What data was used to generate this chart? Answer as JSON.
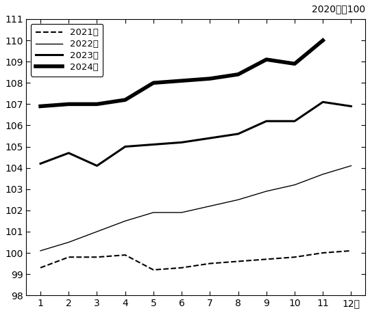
{
  "title_annotation": "2020年＝100",
  "ylim": [
    98,
    111
  ],
  "yticks": [
    98,
    99,
    100,
    101,
    102,
    103,
    104,
    105,
    106,
    107,
    108,
    109,
    110,
    111
  ],
  "series": {
    "2021年": {
      "data": [
        99.3,
        99.8,
        99.8,
        99.9,
        99.2,
        99.3,
        99.5,
        99.6,
        99.7,
        99.8,
        100.0,
        100.1
      ],
      "linestyle": "dashed",
      "linewidth": 1.5,
      "color": "#000000",
      "dashes": [
        4,
        3
      ]
    },
    "2022年": {
      "data": [
        100.1,
        100.5,
        101.0,
        101.5,
        101.9,
        101.9,
        102.2,
        102.5,
        102.9,
        103.2,
        103.7,
        104.1
      ],
      "linestyle": "solid",
      "linewidth": 1.0,
      "color": "#000000"
    },
    "2023年": {
      "data": [
        104.2,
        104.7,
        104.1,
        105.0,
        105.1,
        105.2,
        105.4,
        105.6,
        106.2,
        106.2,
        107.1,
        106.9
      ],
      "linestyle": "solid",
      "linewidth": 2.2,
      "color": "#000000"
    },
    "2024年": {
      "data": [
        106.9,
        107.0,
        107.0,
        107.2,
        108.0,
        108.1,
        108.2,
        108.4,
        109.1,
        108.9,
        110.0,
        null
      ],
      "linestyle": "solid",
      "linewidth": 4.0,
      "color": "#000000"
    }
  },
  "legend_order": [
    "2021年",
    "2022年",
    "2023年",
    "2024年"
  ],
  "background_color": "#ffffff"
}
